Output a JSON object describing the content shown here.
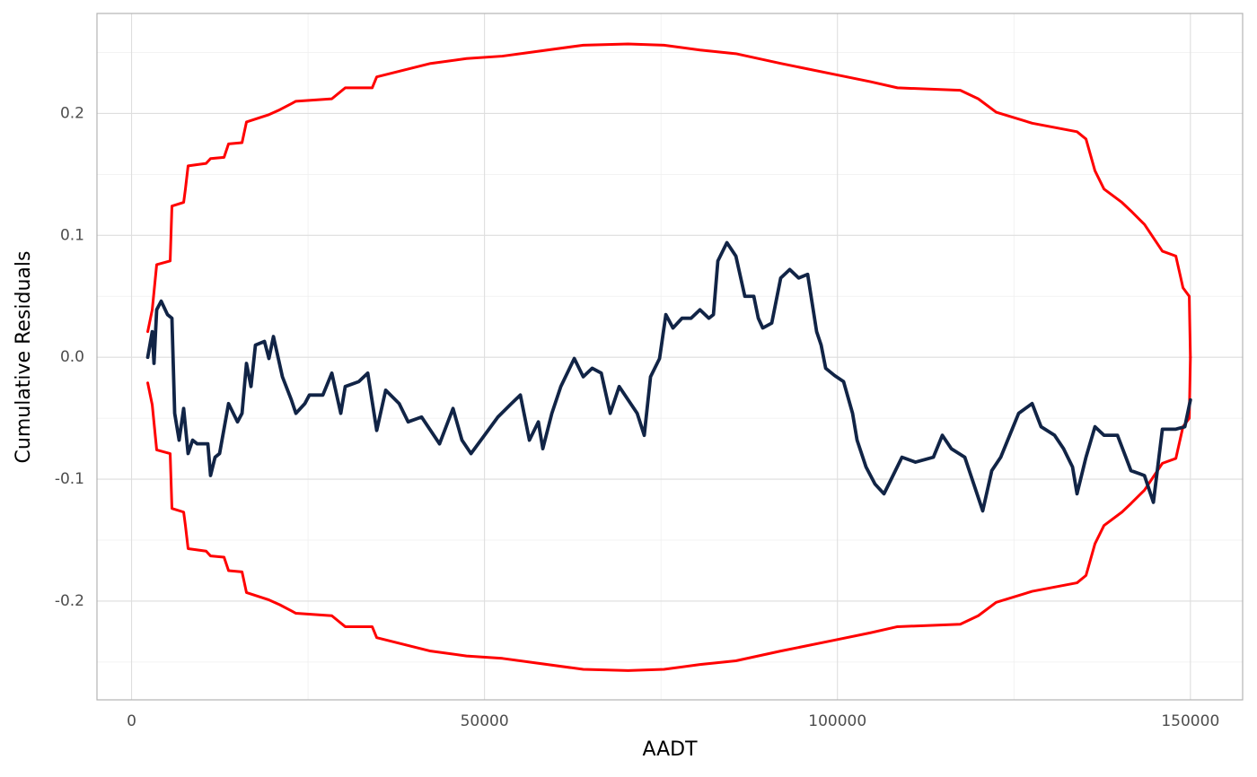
{
  "chart_data": {
    "type": "line",
    "xlabel": "AADT",
    "ylabel": "Cumulative Residuals",
    "xlim": [
      -4900,
      157400
    ],
    "ylim": [
      -0.281,
      0.282
    ],
    "xticks": [
      0,
      50000,
      100000,
      150000
    ],
    "yticks": [
      -0.2,
      -0.1,
      {
        "value": 0,
        "label": "0.0"
      },
      0.1,
      0.2
    ],
    "xminor": [
      25000,
      75000,
      125000
    ],
    "yminor": [
      -0.25,
      -0.15,
      -0.05,
      0.05,
      0.15,
      0.25
    ],
    "grid": true,
    "series": [
      {
        "color": "#ff0000",
        "width": 3,
        "x": [
          2290,
          2930,
          3560,
          5470,
          5720,
          7380,
          7630,
          8010,
          10560,
          11190,
          13100,
          13740,
          15650,
          16280,
          19460,
          20990,
          22640,
          23280,
          28370,
          30270,
          34090,
          34730,
          42360,
          47450,
          52530,
          57630,
          63990,
          70350,
          75430,
          80520,
          85610,
          91960,
          99600,
          104680,
          108500,
          117400,
          119950,
          122490,
          127580,
          133940,
          135210,
          136480,
          137760,
          140300,
          141580,
          143490,
          146030,
          147940,
          148950,
          149840,
          150000
        ],
        "values": [
          0.021,
          0.039,
          0.076,
          0.079,
          0.124,
          0.127,
          0.138,
          0.157,
          0.159,
          0.163,
          0.164,
          0.175,
          0.176,
          0.193,
          0.199,
          0.203,
          0.208,
          0.21,
          0.212,
          0.221,
          0.221,
          0.23,
          0.241,
          0.245,
          0.247,
          0.251,
          0.256,
          0.257,
          0.256,
          0.252,
          0.249,
          0.241,
          0.232,
          0.226,
          0.221,
          0.219,
          0.212,
          0.201,
          0.192,
          0.185,
          0.179,
          0.153,
          0.138,
          0.127,
          0.12,
          0.109,
          0.087,
          0.083,
          0.057,
          0.05,
          0
        ]
      },
      {
        "color": "#ff0000",
        "width": 3,
        "x": [
          2290,
          2930,
          3560,
          5470,
          5720,
          7380,
          7630,
          8010,
          10560,
          11190,
          13100,
          13740,
          15650,
          16280,
          19460,
          20990,
          22640,
          23280,
          28370,
          30270,
          34090,
          34730,
          42360,
          47450,
          52530,
          57630,
          63990,
          70350,
          75430,
          80520,
          85610,
          91960,
          99600,
          104680,
          108500,
          117400,
          119950,
          122490,
          127580,
          133940,
          135210,
          136480,
          137760,
          140300,
          141580,
          143490,
          146030,
          147940,
          148950,
          149840,
          150000
        ],
        "values": [
          -0.021,
          -0.039,
          -0.076,
          -0.079,
          -0.124,
          -0.127,
          -0.138,
          -0.157,
          -0.159,
          -0.163,
          -0.164,
          -0.175,
          -0.176,
          -0.193,
          -0.199,
          -0.203,
          -0.208,
          -0.21,
          -0.212,
          -0.221,
          -0.221,
          -0.23,
          -0.241,
          -0.245,
          -0.247,
          -0.251,
          -0.256,
          -0.257,
          -0.256,
          -0.252,
          -0.249,
          -0.241,
          -0.232,
          -0.226,
          -0.221,
          -0.219,
          -0.212,
          -0.201,
          -0.192,
          -0.185,
          -0.179,
          -0.153,
          -0.138,
          -0.127,
          -0.12,
          -0.109,
          -0.087,
          -0.083,
          -0.057,
          -0.05,
          0
        ]
      },
      {
        "color": "#112446",
        "width": 3.8,
        "x": [
          2290,
          2930,
          3180,
          3560,
          4200,
          5090,
          5720,
          6110,
          6740,
          7380,
          8010,
          8650,
          9290,
          10810,
          11190,
          11830,
          12470,
          13740,
          15010,
          15650,
          16280,
          16920,
          17550,
          18830,
          19460,
          20100,
          21370,
          22640,
          23280,
          24550,
          25190,
          27100,
          28370,
          29640,
          30270,
          32180,
          33460,
          34730,
          36000,
          37910,
          39180,
          41090,
          43630,
          45540,
          46810,
          48090,
          50000,
          51900,
          53810,
          55080,
          56360,
          57630,
          58260,
          59540,
          60810,
          62720,
          63990,
          65260,
          66540,
          67810,
          69080,
          70350,
          71630,
          72630,
          73520,
          74800,
          75690,
          76700,
          77980,
          79250,
          80520,
          81790,
          82430,
          83060,
          84340,
          85610,
          86880,
          88150,
          88790,
          89420,
          90690,
          91960,
          93240,
          94510,
          95780,
          97050,
          97690,
          98330,
          99600,
          100870,
          102140,
          102780,
          104050,
          105320,
          106590,
          107870,
          109140,
          111050,
          113590,
          114860,
          116130,
          118040,
          119310,
          120580,
          121860,
          123130,
          124400,
          125670,
          127580,
          128850,
          130760,
          132030,
          133300,
          133940,
          135210,
          136480,
          137760,
          139670,
          141580,
          143490,
          144760,
          146030,
          147940,
          149210,
          150000
        ],
        "values": [
          0,
          0.021,
          -0.005,
          0.039,
          0.046,
          0.035,
          0.032,
          -0.046,
          -0.068,
          -0.042,
          -0.079,
          -0.068,
          -0.071,
          -0.071,
          -0.097,
          -0.082,
          -0.079,
          -0.038,
          -0.053,
          -0.046,
          -0.005,
          -0.024,
          0.01,
          0.013,
          -0.001,
          0.017,
          -0.016,
          -0.035,
          -0.046,
          -0.038,
          -0.031,
          -0.031,
          -0.013,
          -0.046,
          -0.024,
          -0.02,
          -0.013,
          -0.06,
          -0.027,
          -0.038,
          -0.053,
          -0.049,
          -0.071,
          -0.042,
          -0.068,
          -0.079,
          -0.064,
          -0.049,
          -0.038,
          -0.031,
          -0.068,
          -0.053,
          -0.075,
          -0.046,
          -0.024,
          -0.001,
          -0.016,
          -0.009,
          -0.013,
          -0.046,
          -0.024,
          -0.035,
          -0.046,
          -0.064,
          -0.016,
          -0.001,
          0.035,
          0.024,
          0.032,
          0.032,
          0.039,
          0.032,
          0.035,
          0.079,
          0.094,
          0.083,
          0.05,
          0.05,
          0.032,
          0.024,
          0.028,
          0.065,
          0.072,
          0.065,
          0.068,
          0.021,
          0.01,
          -0.009,
          -0.015,
          -0.02,
          -0.046,
          -0.068,
          -0.09,
          -0.104,
          -0.112,
          -0.097,
          -0.082,
          -0.086,
          -0.082,
          -0.064,
          -0.075,
          -0.082,
          -0.104,
          -0.126,
          -0.093,
          -0.082,
          -0.064,
          -0.046,
          -0.038,
          -0.057,
          -0.064,
          -0.075,
          -0.09,
          -0.112,
          -0.082,
          -0.057,
          -0.064,
          -0.064,
          -0.093,
          -0.097,
          -0.119,
          -0.059,
          -0.059,
          -0.057,
          -0.035
        ]
      }
    ]
  }
}
